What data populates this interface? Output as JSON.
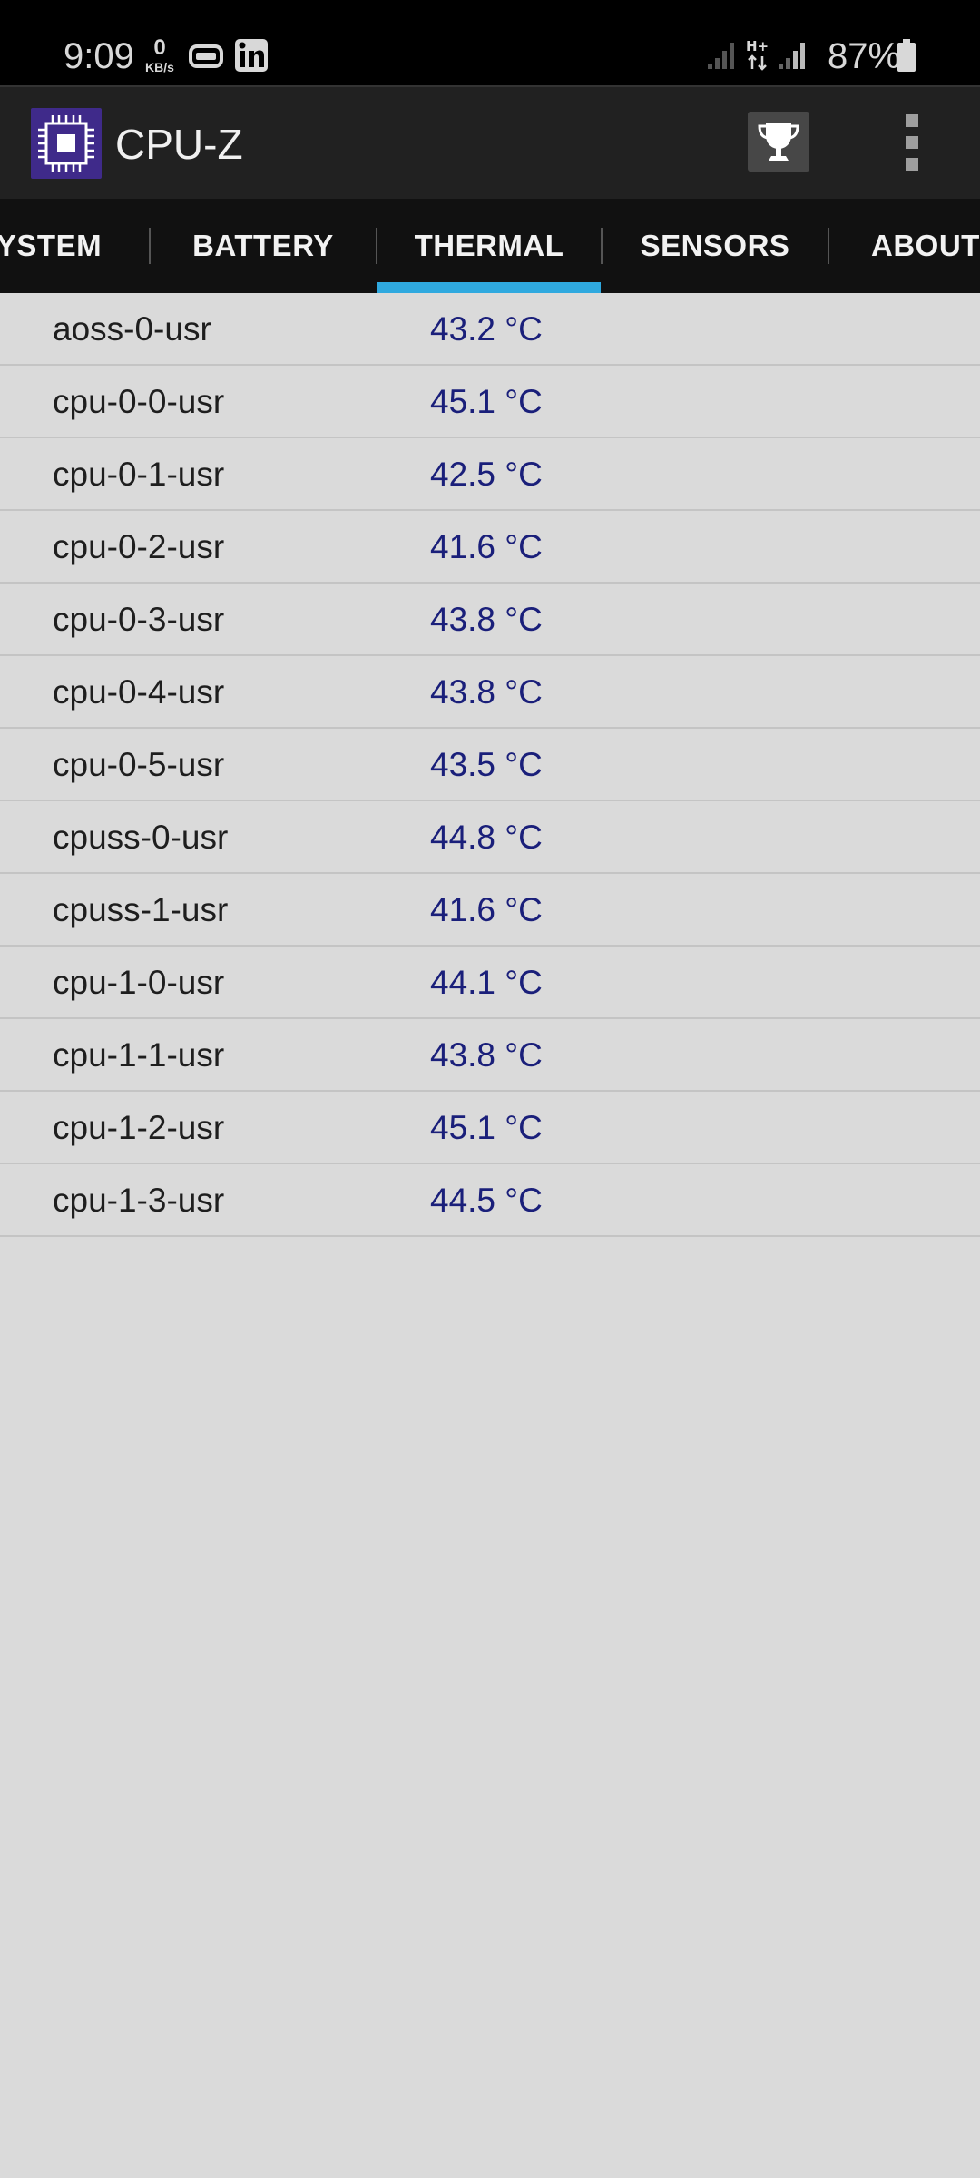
{
  "status_bar": {
    "time": "9:09",
    "net_speed_value": "0",
    "net_speed_unit": "KB/s",
    "notification_icons": [
      "hdd-icon",
      "linkedin-icon"
    ],
    "network_type": "H+",
    "battery_percent": "87%"
  },
  "app_bar": {
    "title": "CPU-Z",
    "logo_icon": "cpu-chip-icon",
    "actions": [
      "trophy-icon",
      "overflow-menu-icon"
    ]
  },
  "tabs": {
    "items": [
      {
        "label": "YSTEM"
      },
      {
        "label": "BATTERY"
      },
      {
        "label": "THERMAL"
      },
      {
        "label": "SENSORS"
      },
      {
        "label": "ABOUT"
      }
    ],
    "active": "THERMAL",
    "indicator_color": "#2fa9df"
  },
  "thermal": {
    "zones": [
      {
        "name": "aoss-0-usr",
        "value": "43.2 °C"
      },
      {
        "name": "cpu-0-0-usr",
        "value": "45.1 °C"
      },
      {
        "name": "cpu-0-1-usr",
        "value": "42.5 °C"
      },
      {
        "name": "cpu-0-2-usr",
        "value": "41.6 °C"
      },
      {
        "name": "cpu-0-3-usr",
        "value": "43.8 °C"
      },
      {
        "name": "cpu-0-4-usr",
        "value": "43.8 °C"
      },
      {
        "name": "cpu-0-5-usr",
        "value": "43.5 °C"
      },
      {
        "name": "cpuss-0-usr",
        "value": "44.8 °C"
      },
      {
        "name": "cpuss-1-usr",
        "value": "41.6 °C"
      },
      {
        "name": "cpu-1-0-usr",
        "value": "44.1 °C"
      },
      {
        "name": "cpu-1-1-usr",
        "value": "43.8 °C"
      },
      {
        "name": "cpu-1-2-usr",
        "value": "45.1 °C"
      },
      {
        "name": "cpu-1-3-usr",
        "value": "44.5 °C"
      }
    ]
  },
  "colors": {
    "value_text": "#1a1f7a",
    "list_background": "#dadada",
    "app_bar": "#212121",
    "tab_bar": "#111111"
  }
}
